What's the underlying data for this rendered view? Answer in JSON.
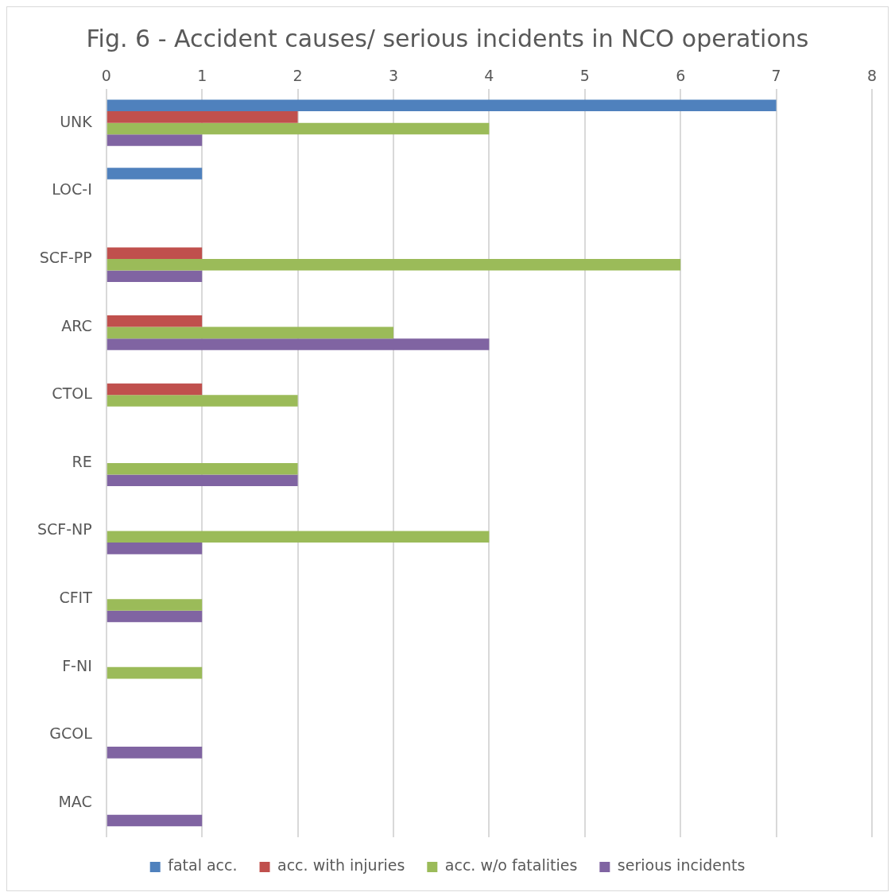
{
  "chart_data": {
    "type": "bar",
    "orientation": "horizontal",
    "title": "Fig. 6 - Accident causes/ serious incidents in NCO operations",
    "categories": [
      "UNK",
      "LOC-I",
      "SCF-PP",
      "ARC",
      "CTOL",
      "RE",
      "SCF-NP",
      "CFIT",
      "F-NI",
      "GCOL",
      "MAC"
    ],
    "series": [
      {
        "name": "fatal acc.",
        "color": "#4f81bd",
        "values": [
          7,
          1,
          0,
          0,
          0,
          0,
          0,
          0,
          0,
          0,
          0
        ]
      },
      {
        "name": "acc. with injuries",
        "color": "#c0504d",
        "values": [
          2,
          0,
          1,
          1,
          1,
          0,
          0,
          0,
          0,
          0,
          0
        ]
      },
      {
        "name": "acc. w/o fatalities",
        "color": "#9bbb59",
        "values": [
          4,
          0,
          6,
          3,
          2,
          2,
          4,
          1,
          1,
          0,
          0
        ]
      },
      {
        "name": "serious incidents",
        "color": "#8064a2",
        "values": [
          1,
          0,
          1,
          4,
          0,
          2,
          1,
          1,
          0,
          1,
          1
        ]
      }
    ],
    "xlim": [
      0,
      8
    ],
    "xticks": [
      0,
      1,
      2,
      3,
      4,
      5,
      6,
      7,
      8
    ],
    "grid": "x",
    "legend": "bottom"
  }
}
